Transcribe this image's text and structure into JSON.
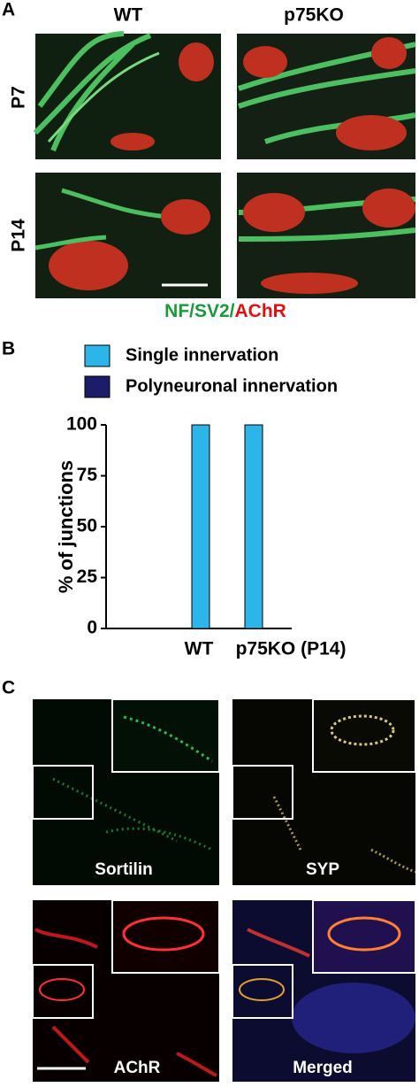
{
  "panels": {
    "a": {
      "label": "A",
      "columns": [
        "WT",
        "p75KO"
      ],
      "rows": [
        "P7",
        "P14"
      ],
      "stain": [
        "NF/SV2/",
        "AChR"
      ]
    },
    "b": {
      "label": "B"
    },
    "c": {
      "label": "C",
      "captions": [
        "Sortilin",
        "SYP",
        "AChR",
        "Merged"
      ]
    }
  },
  "chart_data": {
    "type": "bar",
    "ylabel": "% of junctions",
    "categories": [
      "WT",
      "p75KO (P14)"
    ],
    "series": [
      {
        "name": "Single innervation",
        "color": "#2bb5e8",
        "values": [
          100,
          100
        ]
      },
      {
        "name": "Polyneuronal innervation",
        "color": "#1c1c6b",
        "values": [
          0,
          0
        ]
      }
    ],
    "ylim": [
      0,
      100
    ],
    "yticks": [
      0,
      25,
      50,
      75,
      100
    ]
  }
}
